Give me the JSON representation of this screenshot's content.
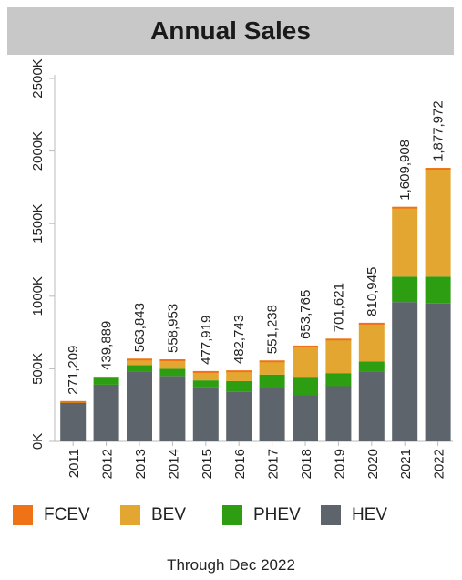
{
  "title": "Annual Sales",
  "footnote": "Through Dec 2022",
  "colors": {
    "FCEV": "#f07216",
    "BEV": "#e3a731",
    "PHEV": "#2d9d12",
    "HEV": "#5d646b",
    "axis": "#bbbbbb",
    "title_bg": "#c8c8c8"
  },
  "legend": [
    {
      "key": "FCEV",
      "label": "FCEV"
    },
    {
      "key": "BEV",
      "label": "BEV"
    },
    {
      "key": "PHEV",
      "label": "PHEV"
    },
    {
      "key": "HEV",
      "label": "HEV"
    }
  ],
  "chart_data": {
    "type": "bar",
    "stacked": true,
    "title": "Annual Sales",
    "categories": [
      "2011",
      "2012",
      "2013",
      "2014",
      "2015",
      "2016",
      "2017",
      "2018",
      "2019",
      "2020",
      "2021",
      "2022"
    ],
    "series": [
      {
        "name": "HEV",
        "values": [
          265000,
          390000,
          480000,
          450000,
          375000,
          340000,
          370000,
          320000,
          380000,
          480000,
          960000,
          950000
        ]
      },
      {
        "name": "PHEV",
        "values": [
          3000,
          45000,
          45000,
          50000,
          45000,
          75000,
          90000,
          125000,
          90000,
          70000,
          175000,
          185000
        ]
      },
      {
        "name": "BEV",
        "values": [
          3209,
          4889,
          38843,
          58953,
          57919,
          67743,
          91238,
          208765,
          231621,
          260945,
          474908,
          742972
        ]
      },
      {
        "name": "FCEV",
        "values": [
          0,
          0,
          0,
          0,
          0,
          0,
          0,
          0,
          0,
          0,
          0,
          0
        ]
      }
    ],
    "totals": [
      "271,209",
      "439,889",
      "563,843",
      "558,953",
      "477,919",
      "482,743",
      "551,238",
      "653,765",
      "701,621",
      "810,945",
      "1,609,908",
      "1,877,972"
    ],
    "total_values": [
      271209,
      439889,
      563843,
      558953,
      477919,
      482743,
      551238,
      653765,
      701621,
      810945,
      1609908,
      1877972
    ],
    "y_ticks": [
      0,
      500000,
      1000000,
      1500000,
      2000000,
      2500000
    ],
    "y_tick_labels": [
      "0K",
      "500K",
      "1000K",
      "1500K",
      "2000K",
      "2500K"
    ],
    "ylim": [
      0,
      2500000
    ],
    "grid": false,
    "legend_position": "bottom"
  }
}
